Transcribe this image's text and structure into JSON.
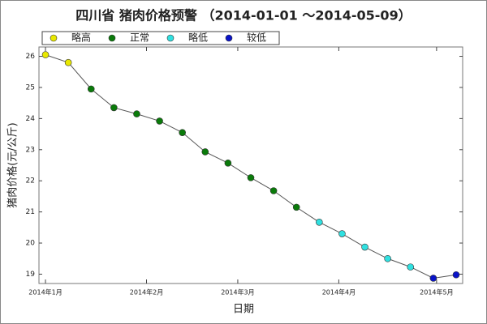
{
  "chart_data": {
    "type": "line",
    "title": "四川省 猪肉价格预警 （2014-01-01 ～2014-05-09）",
    "x_label": "日期",
    "y_label": "猪肉价格(元/公斤)",
    "x": [
      1,
      8,
      15,
      22,
      29,
      36,
      43,
      50,
      57,
      64,
      71,
      78,
      85,
      92,
      99,
      106,
      113,
      120,
      127
    ],
    "series": [
      {
        "name": "略高",
        "color": "#e8e800",
        "values": [
          26.05,
          25.8,
          null,
          null,
          null,
          null,
          null,
          null,
          null,
          null,
          null,
          null,
          null,
          null,
          null,
          null,
          null,
          null,
          null
        ]
      },
      {
        "name": "正常",
        "color": "#0a7a0a",
        "values": [
          null,
          null,
          24.95,
          24.35,
          24.15,
          23.92,
          23.55,
          22.93,
          22.57,
          22.1,
          21.68,
          21.15,
          null,
          null,
          null,
          null,
          null,
          null,
          null
        ]
      },
      {
        "name": "略低",
        "color": "#30e0e0",
        "values": [
          null,
          null,
          null,
          null,
          null,
          null,
          null,
          null,
          null,
          null,
          null,
          null,
          20.67,
          20.3,
          19.87,
          19.5,
          19.23,
          null,
          null
        ]
      },
      {
        "name": "较低",
        "color": "#0a14c8",
        "values": [
          null,
          null,
          null,
          null,
          null,
          null,
          null,
          null,
          null,
          null,
          null,
          null,
          null,
          null,
          null,
          null,
          null,
          18.87,
          18.98
        ]
      }
    ],
    "line_color": "#555555",
    "xlim": [
      -1,
      129
    ],
    "xticks": [
      {
        "value": 1,
        "label": "2014年1月"
      },
      {
        "value": 32,
        "label": "2014年2月"
      },
      {
        "value": 60,
        "label": "2014年3月"
      },
      {
        "value": 91,
        "label": "2014年4月"
      },
      {
        "value": 121,
        "label": "2014年5月"
      }
    ],
    "ylim": [
      18.7,
      26.3
    ],
    "yticks": [
      19,
      20,
      21,
      22,
      23,
      24,
      25,
      26
    ]
  }
}
